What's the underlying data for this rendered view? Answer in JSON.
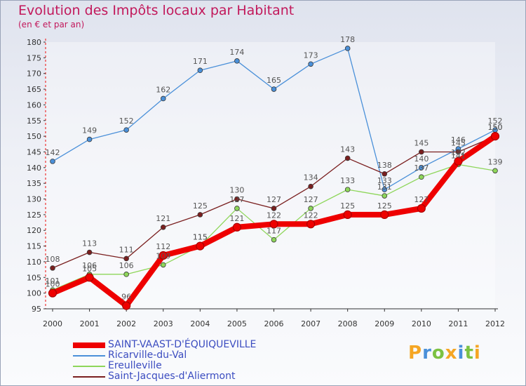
{
  "header": {
    "title": "Evolution des Impôts locaux par Habitant",
    "subtitle": "(en € et par an)"
  },
  "chart_data": {
    "type": "line",
    "title": "Evolution des Impôts locaux par Habitant",
    "subtitle": "(en € et par an)",
    "xlabel": "",
    "ylabel": "",
    "ylim": [
      95,
      180
    ],
    "yticks": [
      95,
      100,
      105,
      110,
      115,
      120,
      125,
      130,
      135,
      140,
      145,
      150,
      155,
      160,
      165,
      170,
      175,
      180
    ],
    "categories": [
      "2000",
      "2001",
      "2002",
      "2003",
      "2004",
      "2005",
      "2006",
      "2007",
      "2008",
      "2009",
      "2010",
      "2011",
      "2012"
    ],
    "grid": false,
    "legend_position": "bottom-left",
    "series": [
      {
        "name": "SAINT-VAAST-D'ÉQUIQUEVILLE",
        "color": "#ee0000",
        "values": [
          100,
          105,
          96,
          112,
          115,
          121,
          122,
          122,
          125,
          125,
          127,
          142,
          150
        ]
      },
      {
        "name": "Ricarville-du-Val",
        "color": "#4a90d9",
        "values": [
          142,
          149,
          152,
          162,
          171,
          174,
          165,
          173,
          178,
          133,
          140,
          146,
          152
        ]
      },
      {
        "name": "Ereulleville",
        "color": "#8ed65a",
        "values": [
          101,
          106,
          106,
          109,
          115,
          127,
          117,
          127,
          133,
          131,
          137,
          141,
          139
        ]
      },
      {
        "name": "Saint-Jacques-d'Aliermont",
        "color": "#7a1f1f",
        "values": [
          108,
          113,
          111,
          121,
          125,
          130,
          127,
          134,
          143,
          138,
          145,
          145,
          150
        ]
      }
    ]
  },
  "logo": {
    "letters": [
      "P",
      "r",
      "o",
      "x",
      "i",
      "t",
      "i"
    ],
    "colors": [
      "#f5a623",
      "#4a90d9",
      "#7cc242",
      "#f5a623",
      "#4a90d9",
      "#7cc242",
      "#f5a623"
    ]
  }
}
